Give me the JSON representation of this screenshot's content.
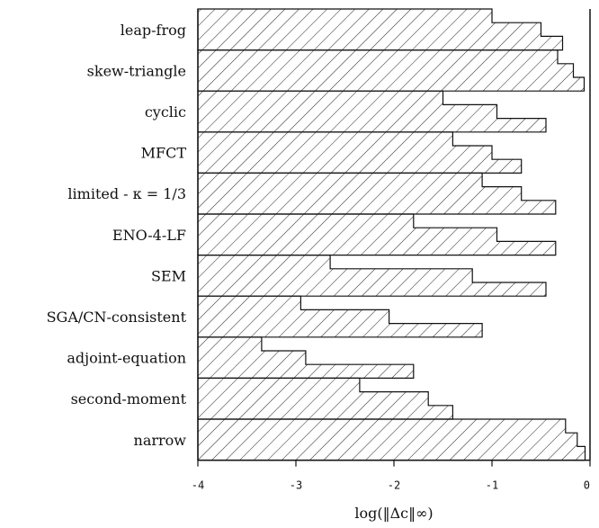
{
  "chart_data": {
    "type": "bar",
    "orientation": "horizontal",
    "style": "hatched step-bars",
    "title": "",
    "xlabel": "log(‖Δc‖∞)",
    "ylabel": "",
    "xlim": [
      -4,
      0
    ],
    "xticks": [
      "-4",
      "-3",
      "-2",
      "-1",
      "0"
    ],
    "categories": [
      {
        "label": "leap-frog",
        "values": [
          -1.0,
          -0.5,
          -0.28
        ]
      },
      {
        "label": "skew-triangle",
        "values": [
          -0.33,
          -0.17,
          -0.06
        ]
      },
      {
        "label": "cyclic",
        "values": [
          -1.5,
          -0.95,
          -0.45
        ]
      },
      {
        "label": "MFCT",
        "values": [
          -1.4,
          -1.0,
          -0.7
        ]
      },
      {
        "label": "limited - κ = 1/3",
        "values": [
          -1.1,
          -0.7,
          -0.35
        ]
      },
      {
        "label": "ENO-4-LF",
        "values": [
          -1.8,
          -0.95,
          -0.35
        ]
      },
      {
        "label": "SEM",
        "values": [
          -2.65,
          -1.2,
          -0.45
        ]
      },
      {
        "label": "SGA/CN-consistent",
        "values": [
          -2.95,
          -2.05,
          -1.1
        ]
      },
      {
        "label": "adjoint-equation",
        "values": [
          -3.35,
          -2.9,
          -1.8
        ]
      },
      {
        "label": "second-moment",
        "values": [
          -2.35,
          -1.65,
          -1.4
        ]
      },
      {
        "label": "narrow",
        "values": [
          -0.25,
          -0.13,
          -0.05
        ]
      }
    ]
  }
}
